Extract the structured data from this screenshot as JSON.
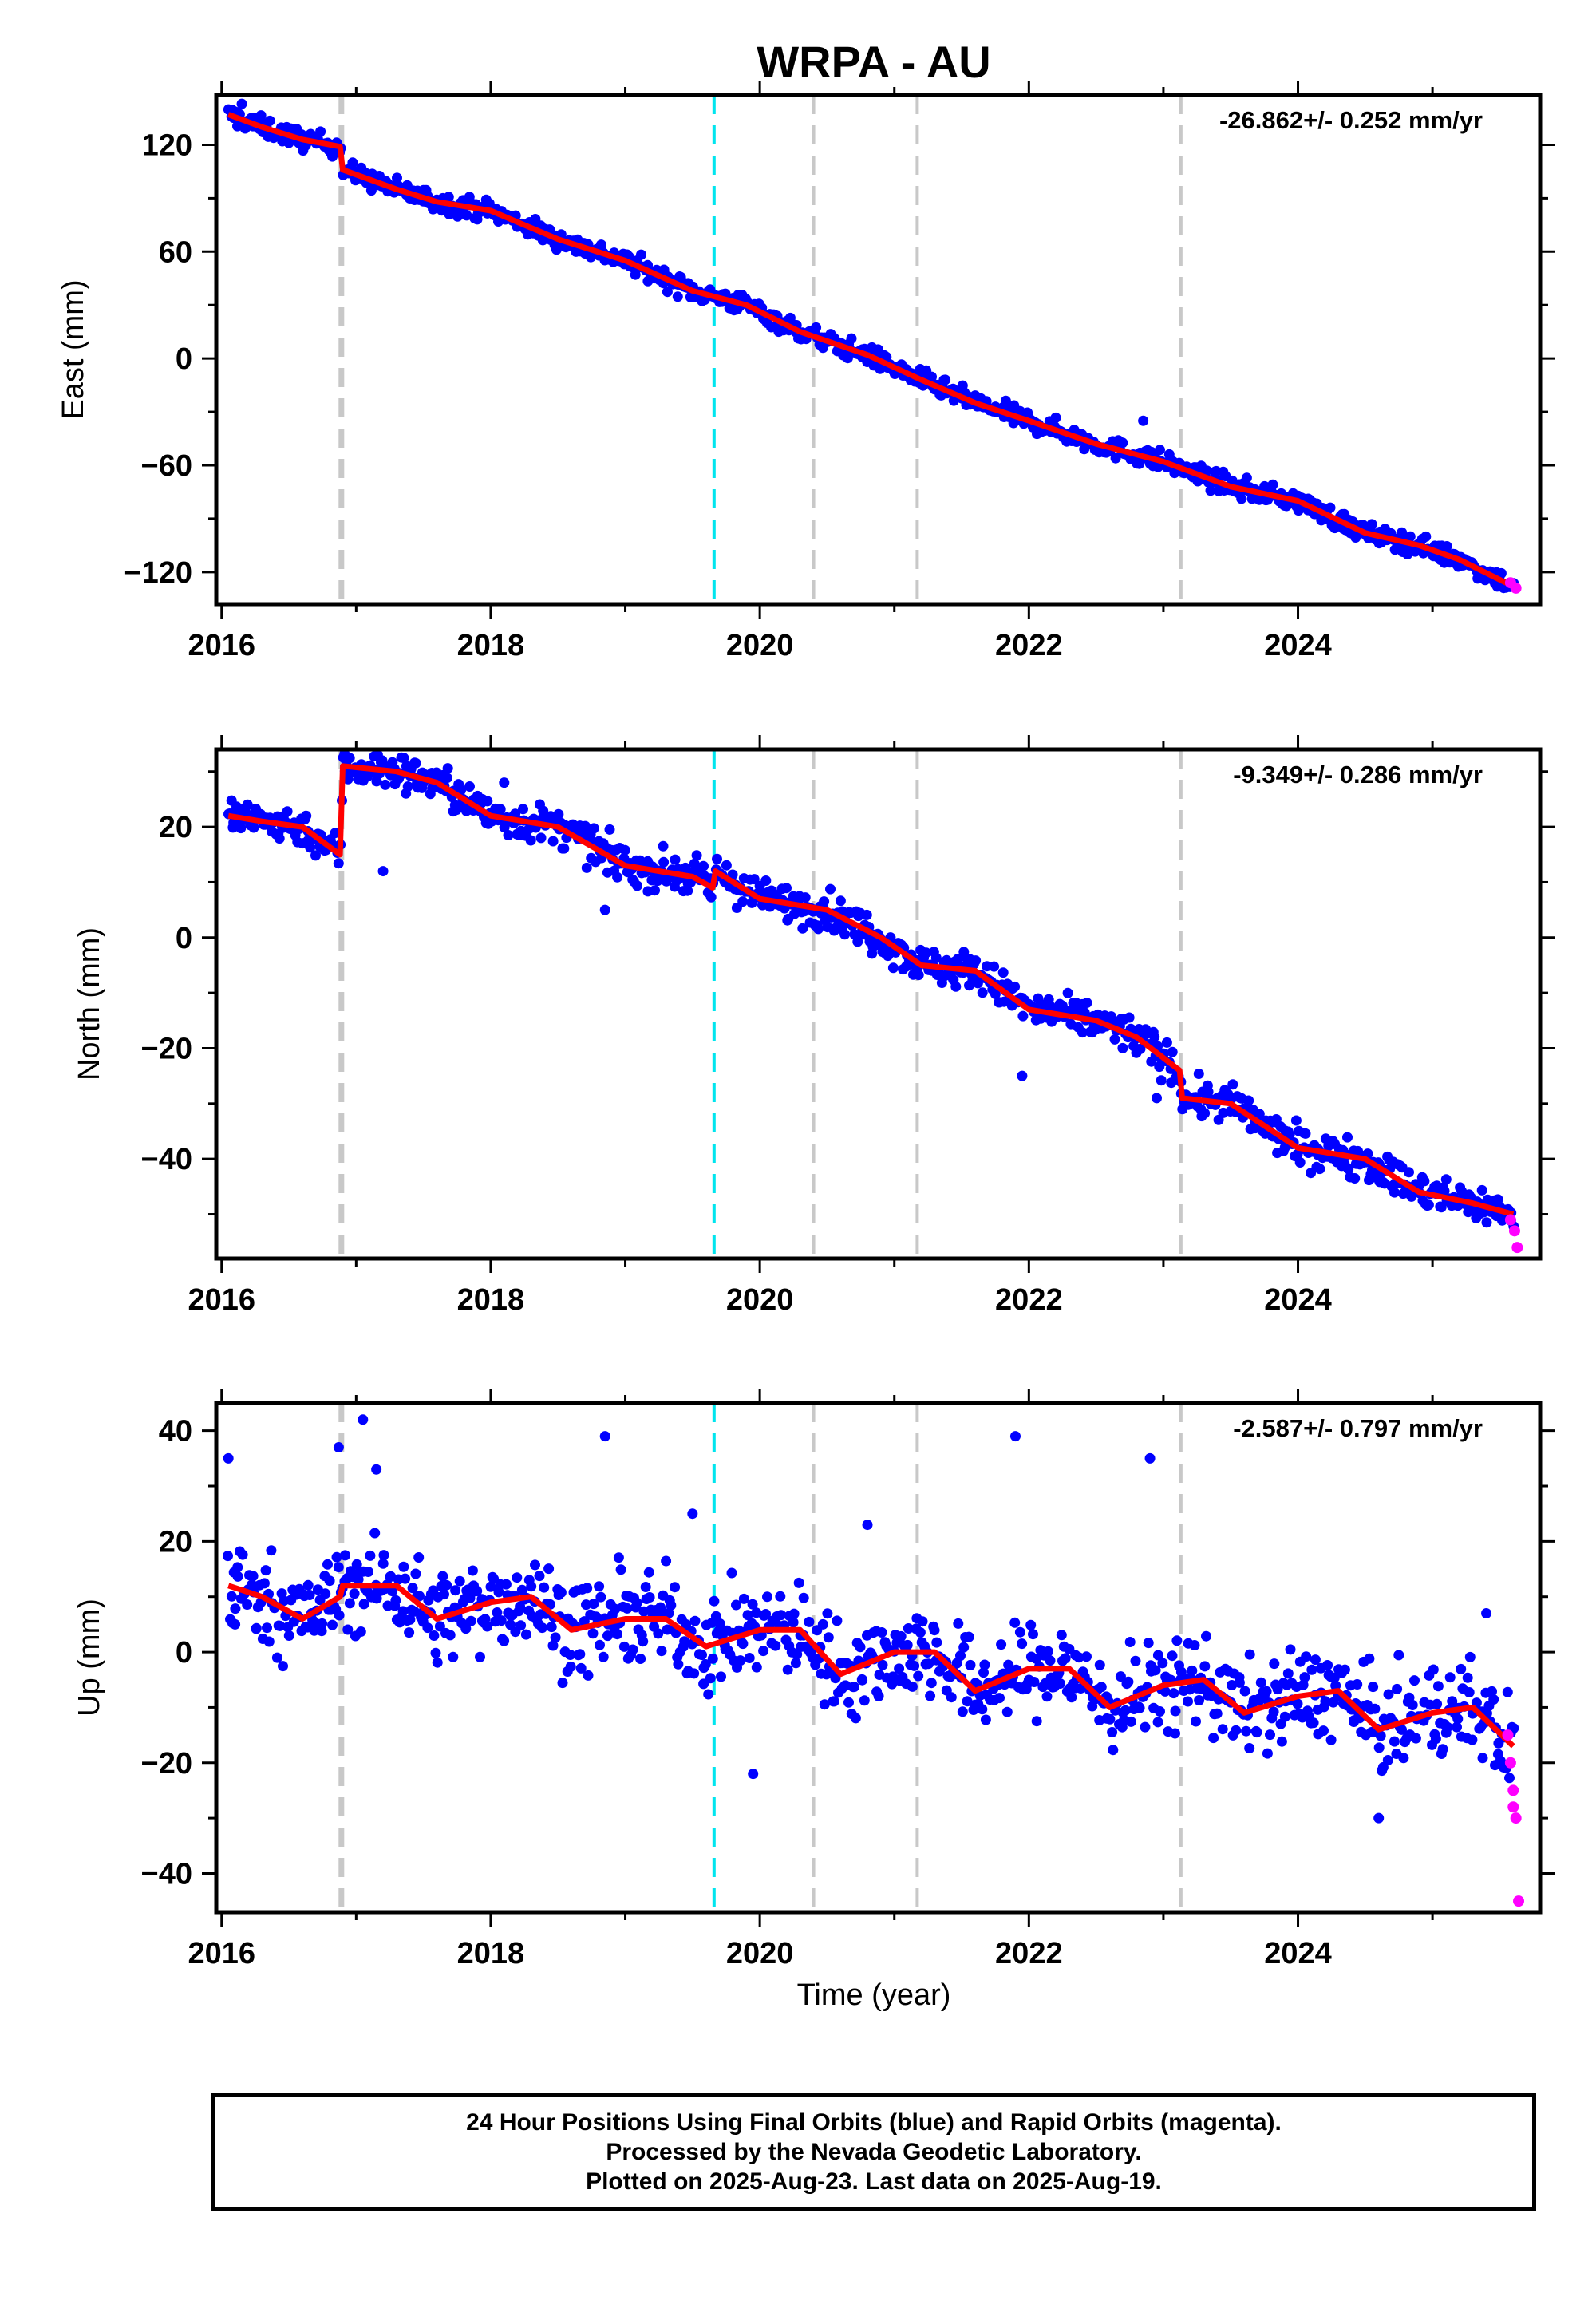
{
  "title": "WRPA - AU",
  "xlabel": "Time (year)",
  "footer": {
    "line1": "24 Hour Positions Using Final Orbits (blue) and Rapid Orbits (magenta).",
    "line2": "Processed by the Nevada Geodetic Laboratory.",
    "line3": "Plotted on 2025-Aug-23. Last data on 2025-Aug-19."
  },
  "colors": {
    "final_orbits": "#0000ff",
    "rapid_orbits": "#ff00ff",
    "model": "#ff0000",
    "equipment_change": "#c8c8c8",
    "earthquake": "#00e5ee"
  },
  "chart_data": [
    {
      "type": "scatter",
      "component": "east",
      "ylabel": "East (mm)",
      "rate_label": "-26.862+/- 0.252 mm/yr",
      "xlim": [
        2015.96,
        2025.8
      ],
      "ylim": [
        -138,
        148
      ],
      "xticks": [
        2016,
        2018,
        2020,
        2022,
        2024
      ],
      "xtick_labels": [
        "2016",
        "2018",
        "2020",
        "2022",
        "2024"
      ],
      "yticks": [
        -120,
        -60,
        0,
        60,
        120
      ],
      "ytick_labels": [
        "−120",
        "−60",
        "0",
        "60",
        "120"
      ],
      "grid": false,
      "event_lines": [
        {
          "x": 2016.89,
          "kind": "equipment"
        },
        {
          "x": 2019.66,
          "kind": "earthquake"
        },
        {
          "x": 2020.4,
          "kind": "equipment"
        },
        {
          "x": 2021.17,
          "kind": "equipment"
        },
        {
          "x": 2023.13,
          "kind": "equipment"
        }
      ],
      "model": {
        "series_name": "model",
        "x": [
          2016.05,
          2016.3,
          2016.6,
          2016.88,
          2016.9,
          2017.3,
          2017.6,
          2018.0,
          2018.5,
          2019.0,
          2019.5,
          2019.9,
          2020.3,
          2020.8,
          2021.2,
          2021.6,
          2022.0,
          2022.5,
          2023.0,
          2023.5,
          2024.0,
          2024.5,
          2024.9,
          2025.2,
          2025.6
        ],
        "y": [
          137,
          130,
          123,
          119,
          106,
          95,
          88,
          83,
          67,
          55,
          38,
          30,
          15,
          2,
          -12,
          -25,
          -35,
          -48,
          -58,
          -72,
          -80,
          -98,
          -105,
          -113,
          -128
        ]
      },
      "scatter_noise": 2.8,
      "outliers": [
        [
          2016.15,
          143
        ],
        [
          2022.85,
          -35
        ]
      ],
      "rapid_points": {
        "x": [
          2025.58,
          2025.62
        ],
        "y": [
          -126,
          -129
        ]
      }
    },
    {
      "type": "scatter",
      "component": "north",
      "ylabel": "North (mm)",
      "rate_label": "-9.349+/- 0.286 mm/yr",
      "xlim": [
        2015.96,
        2025.8
      ],
      "ylim": [
        -58,
        34
      ],
      "xticks": [
        2016,
        2018,
        2020,
        2022,
        2024
      ],
      "xtick_labels": [
        "2016",
        "2018",
        "2020",
        "2022",
        "2024"
      ],
      "yticks": [
        -40,
        -20,
        0,
        20
      ],
      "ytick_labels": [
        "−40",
        "−20",
        "0",
        "20"
      ],
      "grid": false,
      "event_lines": [
        {
          "x": 2016.89,
          "kind": "equipment"
        },
        {
          "x": 2019.66,
          "kind": "earthquake"
        },
        {
          "x": 2020.4,
          "kind": "equipment"
        },
        {
          "x": 2021.17,
          "kind": "equipment"
        },
        {
          "x": 2023.13,
          "kind": "equipment"
        }
      ],
      "model": {
        "series_name": "model",
        "x": [
          2016.05,
          2016.3,
          2016.6,
          2016.88,
          2016.9,
          2017.3,
          2017.6,
          2018.0,
          2018.5,
          2019.0,
          2019.5,
          2019.65,
          2019.67,
          2020.0,
          2020.5,
          2020.9,
          2021.2,
          2021.6,
          2022.0,
          2022.5,
          2022.8,
          2023.12,
          2023.14,
          2023.5,
          2024.0,
          2024.5,
          2024.9,
          2025.3,
          2025.6
        ],
        "y": [
          22,
          21,
          20,
          15,
          31,
          30,
          28,
          22,
          20,
          13,
          11,
          9,
          12,
          7,
          5,
          0,
          -5,
          -6,
          -13,
          -15,
          -18,
          -24,
          -29,
          -30,
          -38,
          -40,
          -46,
          -48,
          -50
        ]
      },
      "scatter_noise": 1.7,
      "outliers": [
        [
          2017.2,
          12
        ],
        [
          2018.1,
          28
        ],
        [
          2018.85,
          5
        ],
        [
          2021.95,
          -25
        ],
        [
          2022.95,
          -29
        ]
      ],
      "rapid_points": {
        "x": [
          2025.58,
          2025.61,
          2025.63
        ],
        "y": [
          -51,
          -53,
          -56
        ]
      }
    },
    {
      "type": "scatter",
      "component": "up",
      "ylabel": "Up (mm)",
      "rate_label": "-2.587+/- 0.797 mm/yr",
      "xlim": [
        2015.96,
        2025.8
      ],
      "ylim": [
        -47,
        45
      ],
      "xticks": [
        2016,
        2018,
        2020,
        2022,
        2024
      ],
      "xtick_labels": [
        "2016",
        "2018",
        "2020",
        "2022",
        "2024"
      ],
      "yticks": [
        -40,
        -20,
        0,
        20,
        40
      ],
      "ytick_labels": [
        "−40",
        "−20",
        "0",
        "20",
        "40"
      ],
      "grid": false,
      "event_lines": [
        {
          "x": 2016.89,
          "kind": "equipment"
        },
        {
          "x": 2019.66,
          "kind": "earthquake"
        },
        {
          "x": 2020.4,
          "kind": "equipment"
        },
        {
          "x": 2021.17,
          "kind": "equipment"
        },
        {
          "x": 2023.13,
          "kind": "equipment"
        }
      ],
      "model": {
        "series_name": "model",
        "x": [
          2016.05,
          2016.3,
          2016.6,
          2016.88,
          2016.9,
          2017.3,
          2017.6,
          2018.0,
          2018.3,
          2018.6,
          2019.0,
          2019.3,
          2019.6,
          2020.0,
          2020.3,
          2020.6,
          2021.0,
          2021.3,
          2021.6,
          2022.0,
          2022.3,
          2022.6,
          2023.0,
          2023.3,
          2023.6,
          2024.0,
          2024.3,
          2024.6,
          2025.0,
          2025.3,
          2025.6
        ],
        "y": [
          12,
          10,
          6,
          10,
          12,
          12,
          6,
          9,
          10,
          4,
          6,
          6,
          1,
          4,
          4,
          -4,
          0,
          0,
          -7,
          -3,
          -3,
          -10,
          -6,
          -5,
          -11,
          -8,
          -7,
          -14,
          -11,
          -10,
          -17
        ]
      },
      "scatter_noise": 4.2,
      "outliers": [
        [
          2016.05,
          35
        ],
        [
          2016.1,
          5
        ],
        [
          2016.87,
          37
        ],
        [
          2017.05,
          42
        ],
        [
          2017.15,
          33
        ],
        [
          2018.85,
          39
        ],
        [
          2019.5,
          25
        ],
        [
          2019.95,
          -22
        ],
        [
          2020.8,
          23
        ],
        [
          2021.9,
          39
        ],
        [
          2022.9,
          35
        ],
        [
          2024.6,
          -30
        ],
        [
          2025.4,
          7
        ]
      ],
      "rapid_points": {
        "x": [
          2025.56,
          2025.58,
          2025.6,
          2025.6,
          2025.62,
          2025.64
        ],
        "y": [
          -15,
          -20,
          -25,
          -28,
          -30,
          -45
        ]
      }
    }
  ]
}
